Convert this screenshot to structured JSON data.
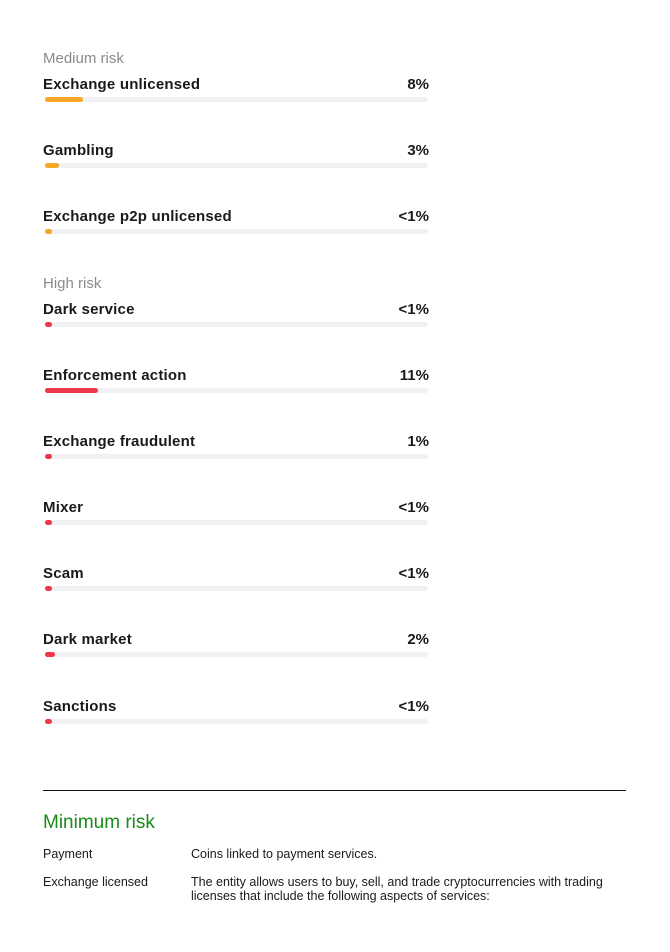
{
  "groups": [
    {
      "label": "Medium risk",
      "color": "#f5a623",
      "items": [
        {
          "name": "Exchange unlicensed",
          "percent": "8%",
          "level": 8
        },
        {
          "name": "Gambling",
          "percent": "3%",
          "level": 3
        },
        {
          "name": "Exchange p2p unlicensed",
          "percent": "<1%",
          "level": 0.5
        }
      ]
    },
    {
      "label": "High risk",
      "color": "#f0364a",
      "items": [
        {
          "name": "Dark service",
          "percent": "<1%",
          "level": 0.5
        },
        {
          "name": "Enforcement action",
          "percent": "11%",
          "level": 11
        },
        {
          "name": "Exchange fraudulent",
          "percent": "1%",
          "level": 1
        },
        {
          "name": "Mixer",
          "percent": "<1%",
          "level": 0.5
        },
        {
          "name": "Scam",
          "percent": "<1%",
          "level": 0.5
        },
        {
          "name": "Dark market",
          "percent": "2%",
          "level": 2
        },
        {
          "name": "Sanctions",
          "percent": "<1%",
          "level": 0.5
        }
      ]
    }
  ],
  "minimum_risk": {
    "title": "Minimum risk",
    "color": "#1a8a1a",
    "definitions": [
      {
        "term": "Payment",
        "description": "Coins linked to payment services."
      },
      {
        "term": "Exchange licensed",
        "description": "The entity allows users to buy, sell, and trade cryptocurrencies with trading licenses that include the following aspects of services:"
      }
    ]
  }
}
